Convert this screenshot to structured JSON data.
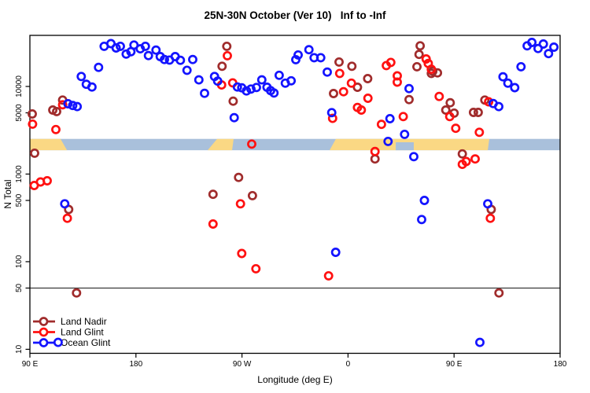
{
  "chart_data": {
    "type": "scatter",
    "title": "25N-30N October (Ver 10)   Inf to -Inf",
    "xlabel": "Longitude (deg E)",
    "ylabel": "N Total",
    "x_axis": {
      "unit": "degrees longitude, unwrapped eastward from 90E",
      "range": [
        90,
        540
      ],
      "ticks": [
        {
          "value": 90,
          "label": "90 E"
        },
        {
          "value": 180,
          "label": "180"
        },
        {
          "value": 270,
          "label": "90 W"
        },
        {
          "value": 360,
          "label": "0"
        },
        {
          "value": 450,
          "label": "90 E"
        },
        {
          "value": 540,
          "label": "180"
        }
      ]
    },
    "y_axis": {
      "scale": "log",
      "range": [
        9,
        38280
      ],
      "ticks": [
        {
          "value": 10,
          "label": "10"
        },
        {
          "value": 50,
          "label": "50"
        },
        {
          "value": 100,
          "label": "100"
        },
        {
          "value": 500,
          "label": "500"
        },
        {
          "value": 1000,
          "label": "1000"
        },
        {
          "value": 5000,
          "label": "5000"
        },
        {
          "value": 10000,
          "label": "10000"
        }
      ]
    },
    "reference_line": {
      "value": 50,
      "color": "#3a3a3a"
    },
    "grid": false,
    "legend_position": "bottom-left",
    "map_strip": {
      "description": "world coastline band 25N-30N drawn across the plot",
      "value_band": [
        1870,
        2520
      ],
      "ocean_color": "#A9C0DB",
      "land_color": "#FAD884",
      "land_polygons": [
        {
          "name": "east-asia",
          "points_lon_frac": [
            [
              90,
              0
            ],
            [
              116,
              0
            ],
            [
              121.5,
              1
            ],
            [
              90,
              1
            ]
          ]
        },
        {
          "name": "mexico",
          "points_lon_frac": [
            [
              248.9,
              0
            ],
            [
              262.9,
              0
            ],
            [
              261.6,
              1
            ],
            [
              240.9,
              1
            ]
          ]
        },
        {
          "name": "africa-arabia",
          "points_lon_frac": [
            [
              349.7,
              0
            ],
            [
              479.9,
              0
            ],
            [
              478.6,
              1
            ],
            [
              344.4,
              1
            ]
          ]
        }
      ],
      "ocean_notches": [
        {
          "name": "persian-gulf",
          "points_lon_frac": [
            [
              400.5,
              0.3
            ],
            [
              415.8,
              0.3
            ],
            [
              415.8,
              1
            ],
            [
              400.5,
              1
            ]
          ]
        }
      ]
    },
    "marker": {
      "shape": "open-circle",
      "radius": 4.6,
      "stroke_width": 2.7
    },
    "series": [
      {
        "name": "Land Nadir",
        "color": "#A02C2C",
        "points": [
          [
            92.0,
            4850
          ],
          [
            109.4,
            5380
          ],
          [
            112.7,
            5170
          ],
          [
            117.8,
            7000
          ],
          [
            257.1,
            28700
          ],
          [
            253.1,
            17000
          ],
          [
            262.5,
            6790
          ],
          [
            267.1,
            916
          ],
          [
            245.4,
            587
          ],
          [
            278.9,
            567
          ],
          [
            122.9,
            394
          ],
          [
            129.6,
            44
          ],
          [
            94.0,
            1730
          ],
          [
            352.4,
            19000
          ],
          [
            363.3,
            17000
          ],
          [
            347.7,
            8300
          ],
          [
            368.0,
            9800
          ],
          [
            376.7,
            12300
          ],
          [
            421.2,
            29100
          ],
          [
            420.3,
            23200
          ],
          [
            418.5,
            16800
          ],
          [
            430.7,
            14100
          ],
          [
            431.9,
            14900
          ],
          [
            435.9,
            14300
          ],
          [
            446.7,
            6520
          ],
          [
            443.0,
            5380
          ],
          [
            450.1,
            4960
          ],
          [
            476.1,
            7000
          ],
          [
            466.5,
            5060
          ],
          [
            470.5,
            5060
          ],
          [
            411.8,
            7080
          ],
          [
            382.9,
            1490
          ],
          [
            457.0,
            1700
          ],
          [
            481.5,
            394
          ],
          [
            488.1,
            44
          ]
        ]
      },
      {
        "name": "Land Glint",
        "color": "#FF1111",
        "points": [
          [
            92.3,
            3720
          ],
          [
            112.0,
            3220
          ],
          [
            117.8,
            6180
          ],
          [
            121.8,
            313
          ],
          [
            93.7,
            741
          ],
          [
            99.0,
            813
          ],
          [
            104.7,
            839
          ],
          [
            257.6,
            22400
          ],
          [
            252.7,
            10400
          ],
          [
            262.1,
            11000
          ],
          [
            278.3,
            2200
          ],
          [
            245.4,
            269
          ],
          [
            268.7,
            458
          ],
          [
            269.8,
            124
          ],
          [
            281.8,
            83
          ],
          [
            343.5,
            69
          ],
          [
            352.9,
            14100
          ],
          [
            356.2,
            8710
          ],
          [
            362.9,
            10900
          ],
          [
            376.9,
            7330
          ],
          [
            368.0,
            5760
          ],
          [
            371.3,
            5380
          ],
          [
            346.9,
            4320
          ],
          [
            392.5,
            17300
          ],
          [
            396.3,
            18800
          ],
          [
            401.8,
            13200
          ],
          [
            401.8,
            11200
          ],
          [
            426.3,
            20600
          ],
          [
            428.1,
            18300
          ],
          [
            430.7,
            15700
          ],
          [
            406.9,
            4530
          ],
          [
            388.4,
            3690
          ],
          [
            382.9,
            1810
          ],
          [
            437.4,
            7690
          ],
          [
            446.3,
            4530
          ],
          [
            451.4,
            3330
          ],
          [
            471.4,
            3000
          ],
          [
            479.3,
            6680
          ],
          [
            460.3,
            1390
          ],
          [
            457.0,
            1290
          ],
          [
            467.9,
            1490
          ],
          [
            480.8,
            313
          ]
        ]
      },
      {
        "name": "Ocean Glint",
        "color": "#1414FF",
        "points": [
          [
            153.0,
            28700
          ],
          [
            158.8,
            30800
          ],
          [
            163.2,
            27500
          ],
          [
            166.8,
            28700
          ],
          [
            171.7,
            23400
          ],
          [
            175.7,
            24900
          ],
          [
            178.3,
            29700
          ],
          [
            183.7,
            26900
          ],
          [
            188.0,
            28700
          ],
          [
            190.6,
            22500
          ],
          [
            197.0,
            26000
          ],
          [
            200.6,
            21900
          ],
          [
            204.2,
            20300
          ],
          [
            208.5,
            20000
          ],
          [
            213.3,
            21900
          ],
          [
            217.7,
            19900
          ],
          [
            223.3,
            15300
          ],
          [
            228.2,
            20300
          ],
          [
            233.4,
            11900
          ],
          [
            238.2,
            8360
          ],
          [
            246.7,
            13000
          ],
          [
            249.4,
            11500
          ],
          [
            263.4,
            4400
          ],
          [
            266.1,
            9850
          ],
          [
            269.8,
            9660
          ],
          [
            273.8,
            8890
          ],
          [
            277.6,
            9340
          ],
          [
            282.3,
            9730
          ],
          [
            286.8,
            11900
          ],
          [
            291.2,
            9800
          ],
          [
            294.3,
            8960
          ],
          [
            297.2,
            8430
          ],
          [
            301.6,
            13400
          ],
          [
            306.8,
            10900
          ],
          [
            311.7,
            11600
          ],
          [
            315.7,
            20200
          ],
          [
            317.7,
            22900
          ],
          [
            326.8,
            26300
          ],
          [
            331.2,
            21300
          ],
          [
            336.8,
            21300
          ],
          [
            342.4,
            14600
          ],
          [
            346.2,
            5030
          ],
          [
            349.5,
            128
          ],
          [
            394.0,
            2360
          ],
          [
            395.6,
            4290
          ],
          [
            408.0,
            2840
          ],
          [
            411.8,
            9460
          ],
          [
            415.8,
            1580
          ],
          [
            422.5,
            303
          ],
          [
            424.8,
            500
          ],
          [
            471.9,
            12
          ],
          [
            478.6,
            458
          ],
          [
            483.2,
            6390
          ],
          [
            487.9,
            5890
          ],
          [
            491.5,
            12900
          ],
          [
            495.7,
            10900
          ],
          [
            501.5,
            9700
          ],
          [
            506.8,
            16800
          ],
          [
            512.0,
            29100
          ],
          [
            516.0,
            31800
          ],
          [
            521.3,
            27100
          ],
          [
            525.8,
            30500
          ],
          [
            530.2,
            23700
          ],
          [
            534.7,
            28100
          ],
          [
            119.6,
            458
          ],
          [
            122.3,
            6350
          ],
          [
            126.3,
            6060
          ],
          [
            130.1,
            5890
          ],
          [
            133.6,
            13000
          ],
          [
            137.9,
            10600
          ],
          [
            142.7,
            9850
          ],
          [
            148.3,
            16500
          ],
          [
            114.0,
            12
          ]
        ]
      }
    ]
  }
}
